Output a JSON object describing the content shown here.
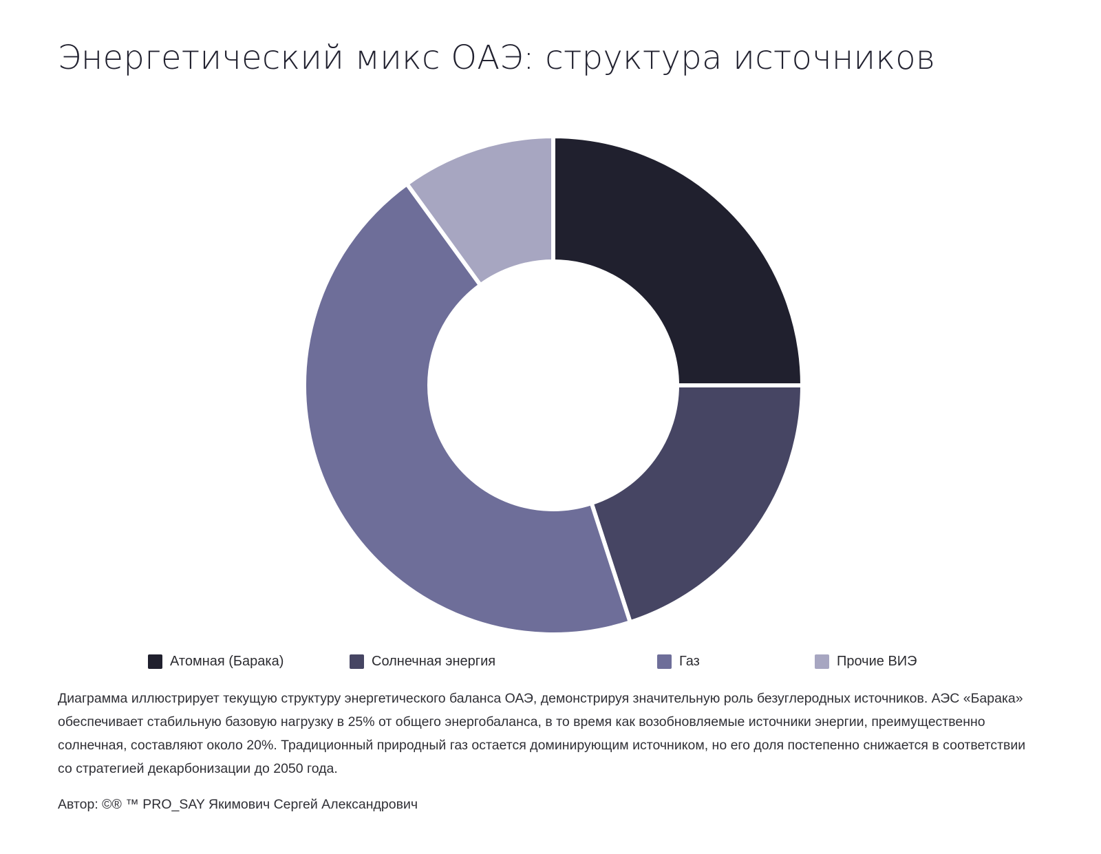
{
  "title": "Энергетический микс ОАЭ: структура источников",
  "chart_data": {
    "type": "pie",
    "variant": "donut",
    "title": "",
    "categories": [
      "Атомная (Барака)",
      "Солнечная энергия",
      "Газ",
      "Прочие ВИЭ"
    ],
    "values": [
      25,
      20,
      45,
      10
    ],
    "colors": [
      "#20202e",
      "#464563",
      "#6e6e99",
      "#a7a6c1"
    ],
    "legend_position": "bottom"
  },
  "legend": {
    "items": [
      {
        "label": "Атомная (Барака)",
        "color": "#20202e"
      },
      {
        "label": "Солнечная энергия",
        "color": "#464563"
      },
      {
        "label": "Газ",
        "color": "#6e6e99"
      },
      {
        "label": "Прочие ВИЭ",
        "color": "#a7a6c1"
      }
    ]
  },
  "description": "Диаграмма иллюстрирует текущую структуру энергетического баланса ОАЭ, демонстрируя значительную роль безуглеродных источников. АЭС «Барака» обеспечивает стабильную базовую нагрузку в 25% от общего энергобаланса, в то время как возобновляемые источники энергии, преимущественно солнечная, составляют около 20%. Традиционный природный газ остается доминирующим источником, но его доля постепенно снижается в соответствии со стратегией декарбонизации до 2050 года.",
  "author": "Автор: ©® ™ PRO_SAY Якимович Сергей Александрович"
}
